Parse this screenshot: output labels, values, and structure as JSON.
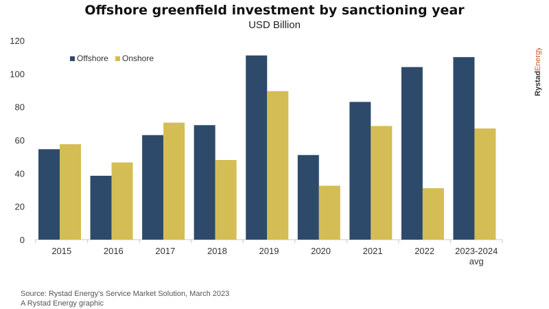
{
  "header": {
    "title": "Offshore greenfield investment by sanctioning year",
    "subtitle": "USD Billion"
  },
  "footer": {
    "source": "Source: Rystad Energy’s Service Market Solution, March 2023",
    "credit": "A Rystad Energy graphic"
  },
  "brand": {
    "word1": "Rystad",
    "word2": "Energy",
    "color1": "#333333",
    "color2": "#cc5533"
  },
  "colors": {
    "offshore": "#2d4a6b",
    "onshore": "#d4bd55",
    "axis": "#c8c8c8"
  },
  "chart_data": {
    "type": "bar",
    "title": "Offshore greenfield investment by sanctioning year",
    "subtitle": "USD Billion",
    "categories": [
      [
        "2015"
      ],
      [
        "2016"
      ],
      [
        "2017"
      ],
      [
        "2018"
      ],
      [
        "2019"
      ],
      [
        "2020"
      ],
      [
        "2021"
      ],
      [
        "2022"
      ],
      [
        "2023-2024",
        "avg"
      ]
    ],
    "series": [
      {
        "name": "Offshore",
        "color": "#2d4a6b",
        "values": [
          54.5,
          38.5,
          63,
          69,
          111,
          51,
          83,
          104,
          110
        ]
      },
      {
        "name": "Onshore",
        "color": "#d4bd55",
        "values": [
          57.5,
          46.5,
          70.5,
          48,
          89.5,
          32.5,
          68.5,
          31,
          67
        ]
      }
    ],
    "ylim": [
      0,
      120
    ],
    "yticks": [
      0,
      20,
      40,
      60,
      80,
      100,
      120
    ],
    "grid": false,
    "legend": "top-left"
  }
}
